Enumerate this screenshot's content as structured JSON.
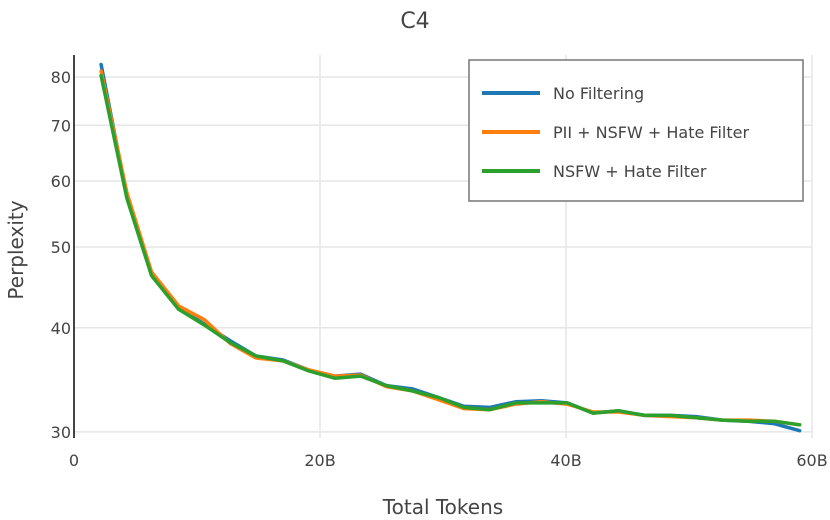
{
  "chart_data": {
    "type": "line",
    "title": "C4",
    "xlabel": "Total Tokens",
    "ylabel": "Perplexity",
    "xlim": [
      0,
      60
    ],
    "ylim": [
      29.5,
      85
    ],
    "yscale": "log",
    "grid": true,
    "legend_position": "top-right",
    "x_ticks": [
      {
        "value": 0,
        "label": "0"
      },
      {
        "value": 20,
        "label": "20B"
      },
      {
        "value": 40,
        "label": "40B"
      },
      {
        "value": 60,
        "label": "60B"
      }
    ],
    "y_ticks": [
      {
        "value": 30,
        "label": "30"
      },
      {
        "value": 40,
        "label": "40"
      },
      {
        "value": 50,
        "label": "50"
      },
      {
        "value": 60,
        "label": "60"
      },
      {
        "value": 70,
        "label": "70"
      },
      {
        "value": 80,
        "label": "80"
      }
    ],
    "x": [
      2.2,
      4.3,
      6.3,
      8.5,
      10.6,
      12.7,
      14.8,
      17.0,
      19.1,
      21.2,
      23.3,
      25.4,
      27.5,
      29.6,
      31.7,
      33.8,
      35.9,
      38.0,
      40.1,
      42.2,
      44.3,
      46.4,
      48.5,
      50.6,
      52.7,
      54.8,
      56.9,
      59.0
    ],
    "series": [
      {
        "name": "No Filtering",
        "color": "#1f77b4",
        "values": [
          82.8,
          57.5,
          46.6,
          42.3,
          40.4,
          38.6,
          37.0,
          36.6,
          35.6,
          35.0,
          35.2,
          34.1,
          33.8,
          33.0,
          32.2,
          32.1,
          32.6,
          32.7,
          32.5,
          31.6,
          31.8,
          31.4,
          31.4,
          31.3,
          31.0,
          30.9,
          30.7,
          30.1
        ]
      },
      {
        "name": "PII + NSFW + Hate Filter",
        "color": "#ff7f0e",
        "values": [
          81.3,
          58.1,
          46.7,
          42.5,
          40.9,
          38.3,
          36.8,
          36.5,
          35.6,
          35.0,
          35.1,
          34.0,
          33.6,
          32.8,
          32.0,
          31.9,
          32.4,
          32.6,
          32.4,
          31.7,
          31.7,
          31.4,
          31.3,
          31.2,
          31.0,
          31.0,
          30.9,
          30.6
        ]
      },
      {
        "name": "NSFW + Hate Filter",
        "color": "#2ca02c",
        "values": [
          80.3,
          57.2,
          46.2,
          42.1,
          40.3,
          38.4,
          37.0,
          36.5,
          35.5,
          34.8,
          35.0,
          34.1,
          33.6,
          33.0,
          32.1,
          31.9,
          32.5,
          32.5,
          32.5,
          31.6,
          31.8,
          31.4,
          31.4,
          31.2,
          31.0,
          30.9,
          30.9,
          30.6
        ]
      }
    ]
  }
}
